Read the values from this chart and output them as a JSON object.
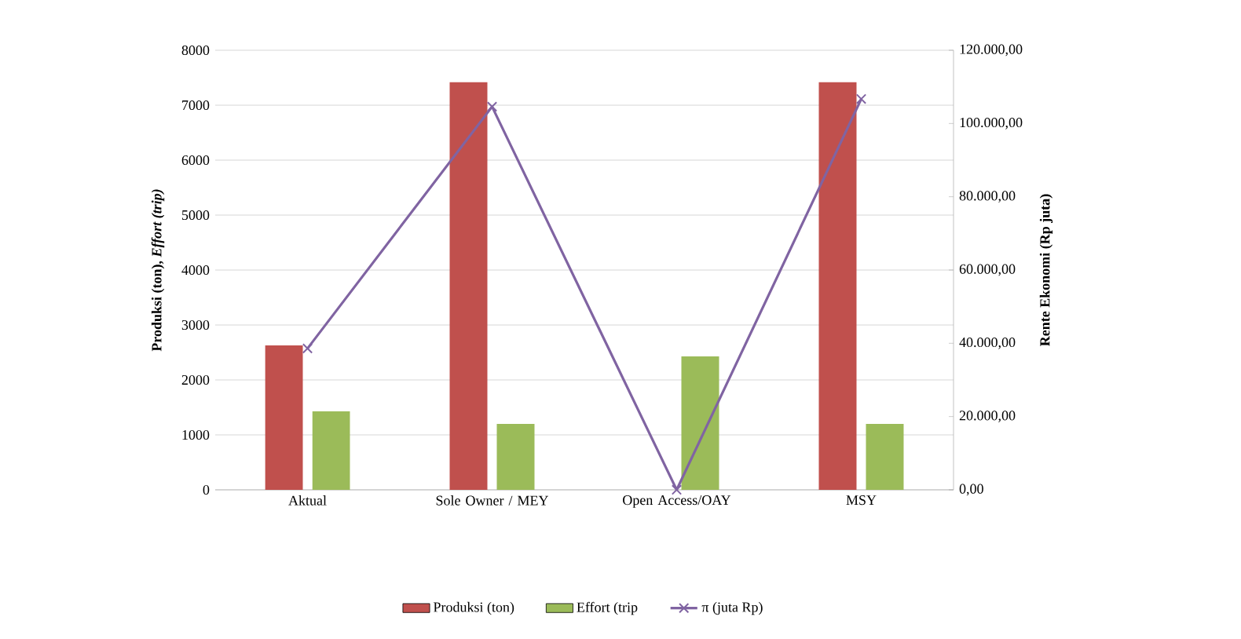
{
  "chart_data": {
    "type": "bar",
    "ylabel": "Produksi (ton), *Effort (trip)*",
    "y2label": "Rente Ekonomi (Rp juta)",
    "categories": [
      "Aktual",
      "Sole Owner / MEY",
      "Open Access/OAY",
      "MSY"
    ],
    "series": [
      {
        "name": "Produksi (ton)",
        "color": "#c0504d",
        "values": [
          2630,
          7420,
          0,
          7420
        ]
      },
      {
        "name": "Effort (trip",
        "color": "#9bbb59",
        "values": [
          1430,
          1200,
          2430,
          1200
        ]
      },
      {
        "name": "π (juta Rp)",
        "type": "line",
        "axis": "y2",
        "marker": "cross",
        "color": "#8064a2",
        "values": [
          38600,
          104600,
          0,
          106700
        ]
      }
    ],
    "ylim": [
      0,
      8000
    ],
    "yticks": [
      0,
      1000,
      2000,
      3000,
      4000,
      5000,
      6000,
      7000,
      8000
    ],
    "y2lim": [
      0,
      120000
    ],
    "y2ticks": [
      {
        "value": 0,
        "label": "0,00"
      },
      {
        "value": 20000,
        "label": "20.000,00"
      },
      {
        "value": 40000,
        "label": "40.000,00"
      },
      {
        "value": 60000,
        "label": "60.000,00"
      },
      {
        "value": 80000,
        "label": "80.000,00"
      },
      {
        "value": 100000,
        "label": "100.000,00"
      },
      {
        "value": 120000,
        "label": "120.000,00"
      }
    ],
    "grid": "y",
    "legend": "bottom"
  }
}
